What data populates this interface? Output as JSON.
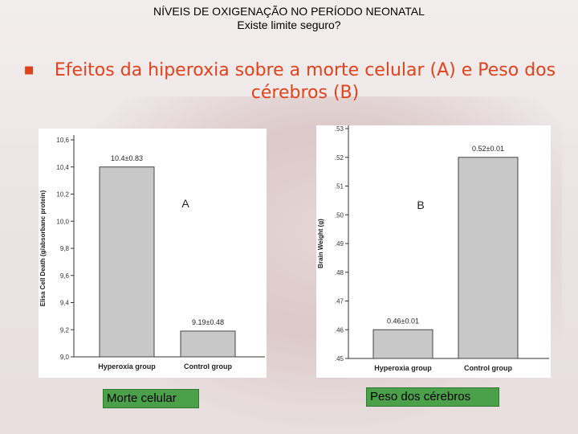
{
  "header": {
    "line1": "NÍVEIS DE OXIGENAÇÃO NO PERÍODO NEONATAL",
    "line2": "Existe limite seguro?"
  },
  "subtitle": {
    "bullet": "■",
    "text": "Efeitos da hiperoxia sobre a morte celular (A)  e Peso dos cérebros (B)"
  },
  "chart_data": [
    {
      "type": "bar",
      "panel": "A",
      "ylabel": "Elisa Cell Death (g/absorbanc protein)",
      "categories": [
        "Hyperoxia group",
        "Control group"
      ],
      "values": [
        10.4,
        9.19
      ],
      "data_labels": [
        "10.4±0.83",
        "9.19±0.48"
      ],
      "ylim": [
        9.0,
        10.6
      ],
      "yticks": [
        "9,0",
        "9,2",
        "9,4",
        "9,6",
        "9,8",
        "10,0",
        "10,2",
        "10,4",
        "10,6"
      ],
      "ytick_values": [
        9.0,
        9.2,
        9.4,
        9.6,
        9.8,
        10.0,
        10.2,
        10.4,
        10.6
      ],
      "bar_color": "#c8c8c8"
    },
    {
      "type": "bar",
      "panel": "B",
      "ylabel": "Brain Weight (g)",
      "categories": [
        "Hyperoxia group",
        "Control group"
      ],
      "values": [
        0.46,
        0.52
      ],
      "data_labels": [
        "0.46±0.01",
        "0.52±0.01"
      ],
      "ylim": [
        0.45,
        0.53
      ],
      "yticks": [
        ".45",
        ".46",
        ".47",
        ".48",
        ".49",
        ".50",
        ".51",
        ".52",
        ".53"
      ],
      "ytick_values": [
        0.45,
        0.46,
        0.47,
        0.48,
        0.49,
        0.5,
        0.51,
        0.52,
        0.53
      ],
      "bar_color": "#c8c8c8"
    }
  ],
  "captions": {
    "a": "Morte celular",
    "b": "Peso dos cérebros"
  }
}
